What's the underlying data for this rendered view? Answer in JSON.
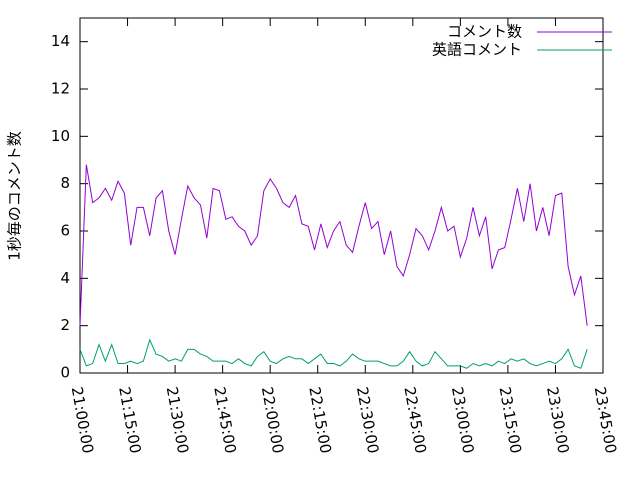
{
  "chart_data": {
    "type": "line",
    "ylabel": "1秒毎のコメント数",
    "legend": "top right",
    "ylim": [
      0,
      15
    ],
    "yticks": [
      0,
      2,
      4,
      6,
      8,
      10,
      12,
      14
    ],
    "xlim": [
      "21:00:00",
      "23:45:00"
    ],
    "xticks": [
      "21:00:00",
      "21:15:00",
      "21:30:00",
      "21:45:00",
      "22:00:00",
      "22:15:00",
      "22:30:00",
      "22:45:00",
      "23:00:00",
      "23:15:00",
      "23:30:00",
      "23:45:00"
    ],
    "x": [
      "21:00:00",
      "21:02:00",
      "21:04:00",
      "21:06:00",
      "21:08:00",
      "21:10:00",
      "21:12:00",
      "21:14:00",
      "21:16:00",
      "21:18:00",
      "21:20:00",
      "21:22:00",
      "21:24:00",
      "21:26:00",
      "21:28:00",
      "21:30:00",
      "21:32:00",
      "21:34:00",
      "21:36:00",
      "21:38:00",
      "21:40:00",
      "21:42:00",
      "21:44:00",
      "21:46:00",
      "21:48:00",
      "21:50:00",
      "21:52:00",
      "21:54:00",
      "21:56:00",
      "21:58:00",
      "22:00:00",
      "22:02:00",
      "22:04:00",
      "22:06:00",
      "22:08:00",
      "22:10:00",
      "22:12:00",
      "22:14:00",
      "22:16:00",
      "22:18:00",
      "22:20:00",
      "22:22:00",
      "22:24:00",
      "22:26:00",
      "22:28:00",
      "22:30:00",
      "22:32:00",
      "22:34:00",
      "22:36:00",
      "22:38:00",
      "22:40:00",
      "22:42:00",
      "22:44:00",
      "22:46:00",
      "22:48:00",
      "22:50:00",
      "22:52:00",
      "22:54:00",
      "22:56:00",
      "22:58:00",
      "23:00:00",
      "23:02:00",
      "23:04:00",
      "23:06:00",
      "23:08:00",
      "23:10:00",
      "23:12:00",
      "23:14:00",
      "23:16:00",
      "23:18:00",
      "23:20:00",
      "23:22:00",
      "23:24:00",
      "23:26:00",
      "23:28:00",
      "23:30:00",
      "23:32:00",
      "23:34:00",
      "23:36:00",
      "23:38:00",
      "23:40:00"
    ],
    "series": [
      {
        "name": "コメント数",
        "color": "#9400d3",
        "values": [
          2.0,
          8.8,
          7.2,
          7.4,
          7.8,
          7.3,
          8.1,
          7.6,
          5.4,
          7.0,
          7.0,
          5.8,
          7.4,
          7.7,
          6.0,
          5.0,
          6.5,
          7.9,
          7.4,
          7.1,
          5.7,
          7.8,
          7.7,
          6.5,
          6.6,
          6.2,
          6.0,
          5.4,
          5.8,
          7.7,
          8.2,
          7.8,
          7.2,
          7.0,
          7.5,
          6.3,
          6.2,
          5.2,
          6.3,
          5.3,
          6.0,
          6.4,
          5.4,
          5.1,
          6.2,
          7.2,
          6.1,
          6.4,
          5.0,
          6.0,
          4.5,
          4.1,
          5.0,
          6.1,
          5.8,
          5.2,
          6.0,
          7.0,
          6.0,
          6.2,
          4.9,
          5.7,
          7.0,
          5.8,
          6.6,
          4.4,
          5.2,
          5.3,
          6.5,
          7.8,
          6.4,
          8.0,
          6.0,
          7.0,
          5.8,
          7.5,
          7.6,
          4.5,
          3.3,
          4.1,
          2.0
        ]
      },
      {
        "name": "英語コメント",
        "color": "#009e73",
        "values": [
          1.0,
          0.3,
          0.4,
          1.2,
          0.5,
          1.2,
          0.4,
          0.4,
          0.5,
          0.4,
          0.5,
          1.4,
          0.8,
          0.7,
          0.5,
          0.6,
          0.5,
          1.0,
          1.0,
          0.8,
          0.7,
          0.5,
          0.5,
          0.5,
          0.4,
          0.6,
          0.4,
          0.3,
          0.7,
          0.9,
          0.5,
          0.4,
          0.6,
          0.7,
          0.6,
          0.6,
          0.4,
          0.6,
          0.8,
          0.4,
          0.4,
          0.3,
          0.5,
          0.8,
          0.6,
          0.5,
          0.5,
          0.5,
          0.4,
          0.3,
          0.3,
          0.5,
          0.9,
          0.5,
          0.3,
          0.4,
          0.9,
          0.6,
          0.3,
          0.3,
          0.3,
          0.2,
          0.4,
          0.3,
          0.4,
          0.3,
          0.5,
          0.4,
          0.6,
          0.5,
          0.6,
          0.4,
          0.3,
          0.4,
          0.5,
          0.4,
          0.6,
          1.0,
          0.3,
          0.2,
          1.0
        ]
      }
    ]
  }
}
